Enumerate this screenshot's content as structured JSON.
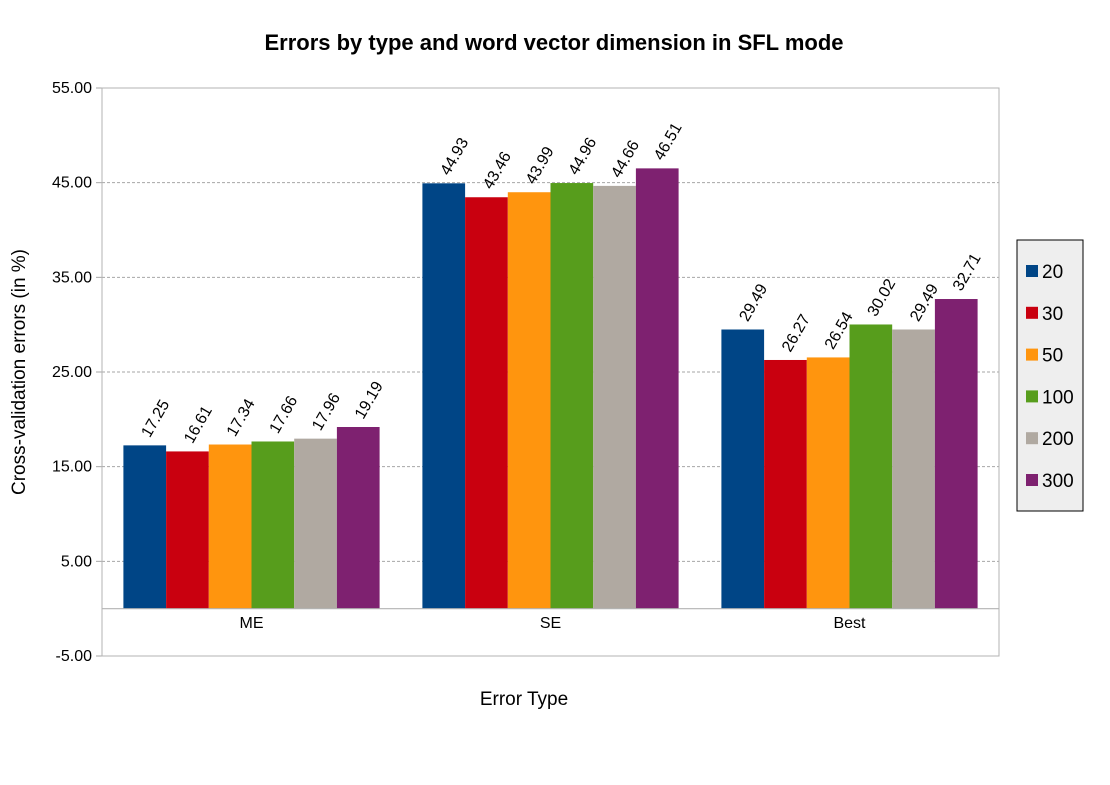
{
  "chart_data": {
    "type": "bar",
    "title": "Errors by type and word vector dimension in SFL mode",
    "xlabel": "Error Type",
    "ylabel": "Cross-validation errors (in %)",
    "ylim": [
      -5,
      55
    ],
    "yticks": [
      "-5.00",
      "5.00",
      "15.00",
      "25.00",
      "35.00",
      "45.00",
      "55.00"
    ],
    "ytick_values": [
      -5,
      5,
      15,
      25,
      35,
      45,
      55
    ],
    "grid": true,
    "legend_position": "right",
    "categories": [
      "ME",
      "SE",
      "Best"
    ],
    "series": [
      {
        "name": "20",
        "color": "#004586",
        "values": [
          17.25,
          44.93,
          29.49
        ],
        "labels": [
          "17.25",
          "44.93",
          "29.49"
        ]
      },
      {
        "name": "30",
        "color": "#c9000f",
        "values": [
          16.61,
          43.46,
          26.27
        ],
        "labels": [
          "16.61",
          "43.46",
          "26.27"
        ]
      },
      {
        "name": "50",
        "color": "#ff950e",
        "values": [
          17.34,
          43.99,
          26.54
        ],
        "labels": [
          "17.34",
          "43.99",
          "26.54"
        ]
      },
      {
        "name": "100",
        "color": "#579d1c",
        "values": [
          17.66,
          44.96,
          30.02
        ],
        "labels": [
          "17.66",
          "44.96",
          "30.02"
        ]
      },
      {
        "name": "200",
        "color": "#b0a9a1",
        "values": [
          17.96,
          44.66,
          29.49
        ],
        "labels": [
          "17.96",
          "44.66",
          "29.49"
        ]
      },
      {
        "name": "300",
        "color": "#7e2170",
        "values": [
          19.19,
          46.51,
          32.71
        ],
        "labels": [
          "19.19",
          "46.51",
          "32.71"
        ]
      }
    ]
  }
}
